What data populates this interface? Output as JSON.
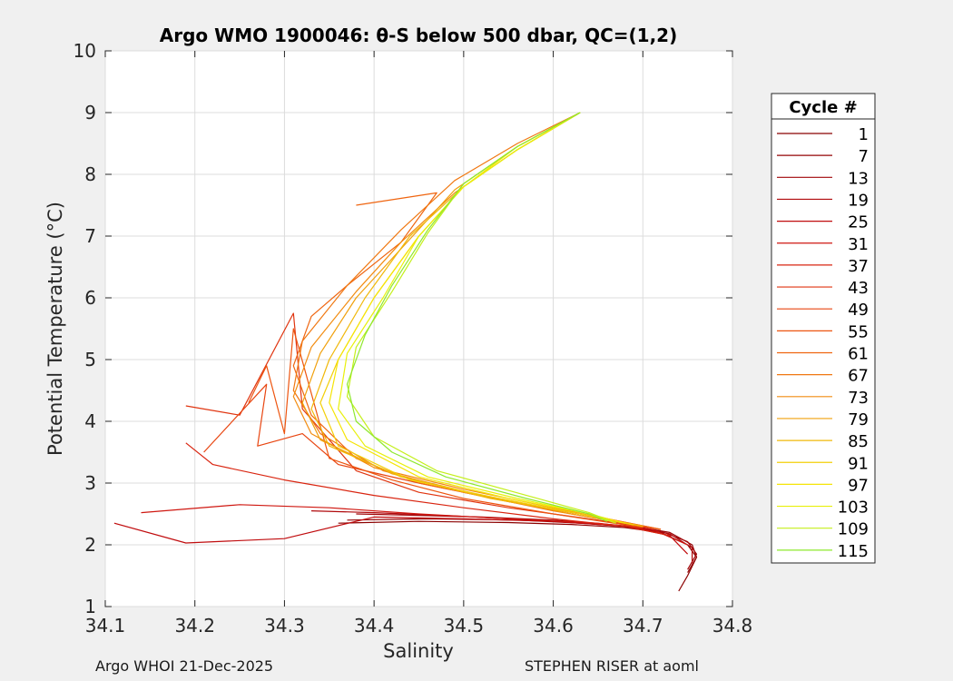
{
  "chart_data": {
    "type": "line",
    "title": "Argo WMO 1900046: θ-S below 500 dbar,  QC=(1,2)",
    "xlabel": "Salinity",
    "ylabel": "Potential Temperature (°C)",
    "xlim": [
      34.1,
      34.8
    ],
    "ylim": [
      1,
      10
    ],
    "xticks": [
      "34.1",
      "34.2",
      "34.3",
      "34.4",
      "34.5",
      "34.6",
      "34.7",
      "34.8"
    ],
    "yticks": [
      "1",
      "2",
      "3",
      "4",
      "5",
      "6",
      "7",
      "8",
      "9",
      "10"
    ],
    "grid": true,
    "legend": {
      "title": "Cycle #",
      "placement": "outside-right",
      "entries": [
        {
          "label": "1",
          "color": "#8b0000"
        },
        {
          "label": "7",
          "color": "#940305"
        },
        {
          "label": "13",
          "color": "#a10609"
        },
        {
          "label": "19",
          "color": "#b0090c"
        },
        {
          "label": "25",
          "color": "#c00c0e"
        },
        {
          "label": "31",
          "color": "#cf1710"
        },
        {
          "label": "37",
          "color": "#d92510"
        },
        {
          "label": "43",
          "color": "#e03510"
        },
        {
          "label": "49",
          "color": "#e84510"
        },
        {
          "label": "55",
          "color": "#ed5510"
        },
        {
          "label": "61",
          "color": "#ef6510"
        },
        {
          "label": "67",
          "color": "#f07812"
        },
        {
          "label": "73",
          "color": "#f28c10"
        },
        {
          "label": "79",
          "color": "#f0a00c"
        },
        {
          "label": "85",
          "color": "#f0b80a"
        },
        {
          "label": "91",
          "color": "#f2cf08"
        },
        {
          "label": "97",
          "color": "#f5e406"
        },
        {
          "label": "103",
          "color": "#e8f00a"
        },
        {
          "label": "109",
          "color": "#c4ef1a"
        },
        {
          "label": "115",
          "color": "#8ee82e"
        }
      ]
    },
    "series": [
      {
        "label": "1",
        "x": [
          34.36,
          34.45,
          34.55,
          34.62,
          34.68,
          34.72,
          34.75,
          34.76,
          34.75,
          34.74
        ],
        "y": [
          2.35,
          2.38,
          2.36,
          2.33,
          2.28,
          2.2,
          2.0,
          1.8,
          1.5,
          1.25
        ]
      },
      {
        "label": "7",
        "x": [
          34.37,
          34.46,
          34.56,
          34.63,
          34.69,
          34.73,
          34.755,
          34.76,
          34.75
        ],
        "y": [
          2.4,
          2.42,
          2.4,
          2.35,
          2.3,
          2.2,
          2.0,
          1.8,
          1.55
        ]
      },
      {
        "label": "13",
        "x": [
          34.38,
          34.44,
          34.52,
          34.6,
          34.67,
          34.72,
          34.75,
          34.76,
          34.75
        ],
        "y": [
          2.5,
          2.48,
          2.45,
          2.4,
          2.32,
          2.22,
          2.05,
          1.85,
          1.6
        ]
      },
      {
        "label": "19",
        "x": [
          34.33,
          34.4,
          34.5,
          34.6,
          34.68,
          34.73,
          34.755,
          34.755
        ],
        "y": [
          2.55,
          2.52,
          2.46,
          2.38,
          2.3,
          2.18,
          1.95,
          1.7
        ]
      },
      {
        "label": "25",
        "x": [
          34.11,
          34.19,
          34.3,
          34.4,
          34.5,
          34.6,
          34.68,
          34.73,
          34.75
        ],
        "y": [
          2.35,
          2.03,
          2.1,
          2.45,
          2.42,
          2.38,
          2.3,
          2.15,
          1.85
        ]
      },
      {
        "label": "31",
        "x": [
          34.14,
          34.25,
          34.35,
          34.45,
          34.55,
          34.65,
          34.71,
          34.75
        ],
        "y": [
          2.52,
          2.65,
          2.6,
          2.5,
          2.42,
          2.35,
          2.25,
          2.0
        ]
      },
      {
        "label": "37",
        "x": [
          34.19,
          34.22,
          34.3,
          34.4,
          34.5,
          34.6,
          34.68,
          34.73
        ],
        "y": [
          3.65,
          3.3,
          3.05,
          2.8,
          2.6,
          2.42,
          2.3,
          2.15
        ]
      },
      {
        "label": "43",
        "x": [
          34.19,
          34.25,
          34.31,
          34.32,
          34.38,
          34.45,
          34.55,
          34.65,
          34.72
        ],
        "y": [
          4.25,
          4.1,
          5.75,
          4.2,
          3.2,
          2.85,
          2.6,
          2.4,
          2.25
        ]
      },
      {
        "label": "49",
        "x": [
          34.21,
          34.28,
          34.27,
          34.32,
          34.36,
          34.45,
          34.55,
          34.65,
          34.72
        ],
        "y": [
          3.5,
          4.6,
          3.6,
          3.8,
          3.3,
          3.0,
          2.7,
          2.45,
          2.25
        ]
      },
      {
        "label": "55",
        "x": [
          34.26,
          34.28,
          34.3,
          34.31,
          34.35,
          34.42,
          34.5,
          34.6,
          34.7
        ],
        "y": [
          4.3,
          4.9,
          3.8,
          5.5,
          3.4,
          3.05,
          2.75,
          2.5,
          2.28
        ]
      },
      {
        "label": "61",
        "x": [
          34.38,
          34.47,
          34.43,
          34.37,
          34.33,
          34.31,
          34.33,
          34.38,
          34.45,
          34.55,
          34.65,
          34.72
        ],
        "y": [
          7.5,
          7.7,
          6.9,
          6.2,
          5.7,
          4.9,
          4.1,
          3.4,
          3.0,
          2.7,
          2.45,
          2.25
        ]
      },
      {
        "label": "67",
        "x": [
          34.63,
          34.56,
          34.49,
          34.43,
          34.37,
          34.32,
          34.31,
          34.34,
          34.41,
          34.5,
          34.6,
          34.7
        ],
        "y": [
          9.0,
          8.5,
          7.9,
          7.1,
          6.2,
          5.3,
          4.5,
          3.8,
          3.2,
          2.85,
          2.55,
          2.3
        ]
      },
      {
        "label": "73",
        "x": [
          34.63,
          34.56,
          34.49,
          34.43,
          34.38,
          34.33,
          34.31,
          34.33,
          34.4,
          34.5,
          34.6,
          34.7
        ],
        "y": [
          9.0,
          8.4,
          7.7,
          6.9,
          6.1,
          5.2,
          4.4,
          3.8,
          3.25,
          2.9,
          2.6,
          2.3
        ]
      },
      {
        "label": "79",
        "x": [
          34.63,
          34.56,
          34.49,
          34.44,
          34.38,
          34.34,
          34.32,
          34.34,
          34.42,
          34.52,
          34.62,
          34.7
        ],
        "y": [
          9.0,
          8.45,
          7.75,
          6.95,
          6.0,
          5.1,
          4.3,
          3.7,
          3.15,
          2.8,
          2.5,
          2.3
        ]
      },
      {
        "label": "85",
        "x": [
          34.63,
          34.56,
          34.5,
          34.44,
          34.39,
          34.35,
          34.33,
          34.35,
          34.43,
          34.53,
          34.63,
          34.7
        ],
        "y": [
          9.0,
          8.4,
          7.8,
          7.0,
          6.0,
          5.0,
          4.2,
          3.6,
          3.1,
          2.75,
          2.5,
          2.3
        ]
      },
      {
        "label": "91",
        "x": [
          34.63,
          34.56,
          34.5,
          34.45,
          34.4,
          34.36,
          34.34,
          34.36,
          34.44,
          34.54,
          34.63,
          34.69
        ],
        "y": [
          9.0,
          8.4,
          7.8,
          7.0,
          6.0,
          5.0,
          4.3,
          3.6,
          3.05,
          2.75,
          2.5,
          2.32
        ]
      },
      {
        "label": "97",
        "x": [
          34.63,
          34.56,
          34.5,
          34.45,
          34.4,
          34.36,
          34.35,
          34.37,
          34.45,
          34.55,
          34.64,
          34.68
        ],
        "y": [
          9.0,
          8.45,
          7.8,
          7.0,
          6.0,
          5.0,
          4.3,
          3.7,
          3.1,
          2.75,
          2.5,
          2.35
        ]
      },
      {
        "label": "103",
        "x": [
          34.63,
          34.56,
          34.5,
          34.45,
          34.41,
          34.37,
          34.36,
          34.39,
          34.46,
          34.56,
          34.64,
          34.67
        ],
        "y": [
          9.0,
          8.4,
          7.8,
          7.0,
          6.0,
          5.1,
          4.2,
          3.6,
          3.1,
          2.75,
          2.5,
          2.35
        ]
      },
      {
        "label": "109",
        "x": [
          34.63,
          34.56,
          34.5,
          34.46,
          34.42,
          34.38,
          34.37,
          34.4,
          34.47,
          34.57,
          34.64,
          34.67
        ],
        "y": [
          9.0,
          8.45,
          7.85,
          7.05,
          6.1,
          5.2,
          4.4,
          3.75,
          3.2,
          2.8,
          2.52,
          2.35
        ]
      },
      {
        "label": "115",
        "x": [
          34.63,
          34.56,
          34.5,
          34.46,
          34.42,
          34.39,
          34.37,
          34.38,
          34.42,
          34.48,
          34.57,
          34.64,
          34.66
        ],
        "y": [
          9.0,
          8.45,
          7.85,
          7.1,
          6.2,
          5.4,
          4.6,
          4.0,
          3.5,
          3.1,
          2.75,
          2.5,
          2.38
        ]
      }
    ]
  },
  "footer": {
    "left": "Argo WHOI 21-Dec-2025",
    "right": "STEPHEN RISER at aoml"
  }
}
